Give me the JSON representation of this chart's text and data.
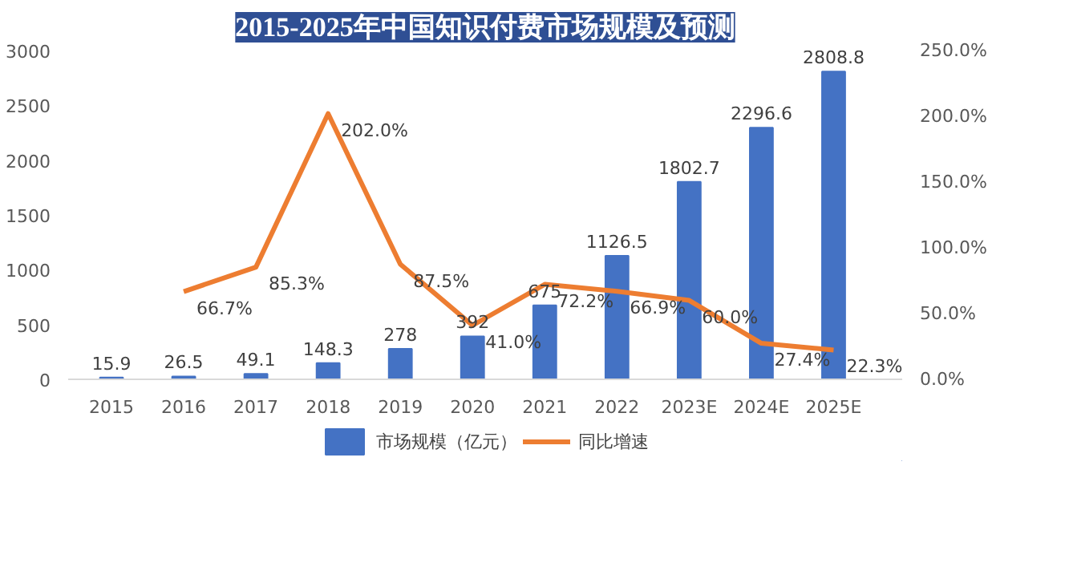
{
  "chart_data": {
    "type": "bar",
    "title": "2015-2025年中国知识付费市场规模及预测",
    "categories": [
      "2015",
      "2016",
      "2017",
      "2018",
      "2019",
      "2020",
      "2021",
      "2022",
      "2023E",
      "2024E",
      "2025E"
    ],
    "series": [
      {
        "name": "市场规模（亿元）",
        "color": "#4472c4",
        "values": [
          15.9,
          26.5,
          49.1,
          148.3,
          278,
          392,
          675,
          1126.5,
          1802.7,
          2296.6,
          2808.8
        ],
        "value_labels": [
          "15.9",
          "26.5",
          "49.1",
          "148.3",
          "278",
          "392",
          "675",
          "1126.5",
          "1802.7",
          "2296.6",
          "2808.8"
        ]
      },
      {
        "name": "同比增速",
        "type": "line",
        "axis": "y2",
        "color": "#ed7d31",
        "values": [
          null,
          66.7,
          85.3,
          202.0,
          87.5,
          41.0,
          72.2,
          66.9,
          60.0,
          27.4,
          22.3
        ],
        "value_labels": [
          null,
          "66.7%",
          "85.3%",
          "202.0%",
          "87.5%",
          "41.0%",
          "72.2%",
          "66.9%",
          "60.0%",
          "27.4%",
          "22.3%"
        ]
      }
    ],
    "ylim": [
      0,
      3000
    ],
    "yticks": [
      0,
      500,
      1000,
      1500,
      2000,
      2500,
      3000
    ],
    "y2lim": [
      0,
      250
    ],
    "y2ticks": [
      {
        "value": 0,
        "label": "0.0%"
      },
      {
        "value": 50,
        "label": "50.0%"
      },
      {
        "value": 100,
        "label": "100.0%"
      },
      {
        "value": 150,
        "label": "150.0%"
      },
      {
        "value": 200,
        "label": "200.0%"
      },
      {
        "value": 250,
        "label": "250.0%"
      }
    ],
    "grid": false,
    "legend": "bottom",
    "marker": "none",
    "line_style": "solid"
  }
}
